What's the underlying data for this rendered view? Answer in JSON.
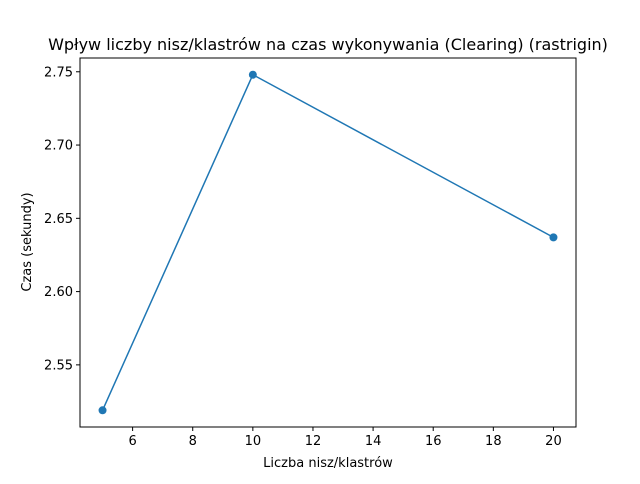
{
  "chart_data": {
    "type": "line",
    "title": "Wpływ liczby nisz/klastrów na czas wykonywania (Clearing) (rastrigin)",
    "xlabel": "Liczba nisz/klastrów",
    "ylabel": "Czas (sekundy)",
    "x": [
      5,
      10,
      20
    ],
    "series": [
      {
        "values": [
          2.519,
          2.748,
          2.637
        ]
      }
    ],
    "xlim": [
      4.25,
      20.75
    ],
    "ylim": [
      2.5076,
      2.7594
    ],
    "xticks": [
      6,
      8,
      10,
      12,
      14,
      16,
      18,
      20
    ],
    "xtick_labels": [
      "6",
      "8",
      "10",
      "12",
      "14",
      "16",
      "18",
      "20"
    ],
    "yticks": [
      2.55,
      2.6,
      2.65,
      2.7,
      2.75
    ],
    "ytick_labels": [
      "2.55",
      "2.60",
      "2.65",
      "2.70",
      "2.75"
    ],
    "grid": false,
    "markers": true,
    "colors": {
      "line": "#1f77b4"
    }
  }
}
